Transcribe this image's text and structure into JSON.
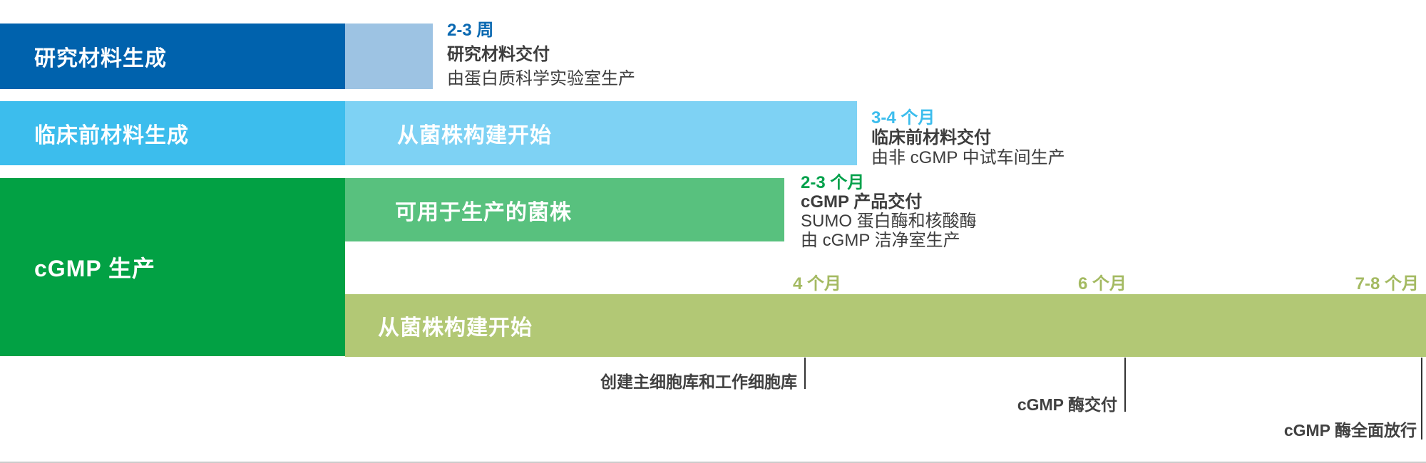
{
  "colors": {
    "research_bar": "#0062AD",
    "research_bar_light": "#9DC3E3",
    "preclinical_bar": "#3CBDED",
    "preclinical_bar_light": "#7ED2F4",
    "cgmp_block_green": "#02A144",
    "strain_bar_green": "#58C17E",
    "build_bar_olive": "#B2C875",
    "timeline_marker_text": "#A4BA62",
    "research_duration_text": "#0968B1",
    "preclinical_duration_text": "#3CBDED",
    "cgmp_duration_text": "#02A14B",
    "body_text": "#3D3D3D",
    "milestone_line": "#333333"
  },
  "rows": {
    "research": {
      "bar_label": "研究材料生成",
      "duration": "2-3 周",
      "deliverable": "研究材料交付",
      "detail": "由蛋白质科学实验室生产"
    },
    "preclinical": {
      "bar_label": "临床前材料生成",
      "sub_bar_label": "从菌株构建开始",
      "duration": "3-4 个月",
      "deliverable": "临床前材料交付",
      "detail": "由非 cGMP 中试车间生产"
    },
    "cgmp": {
      "bar_label": "cGMP 生产",
      "strain_bar_label": "可用于生产的菌株",
      "duration": "2-3 个月",
      "deliverable": "cGMP 产品交付",
      "detail_1": "SUMO 蛋白酶和核酸酶",
      "detail_2": "由 cGMP 洁净室生产",
      "build_bar_label": "从菌株构建开始",
      "timeline_markers": [
        "4 个月",
        "6 个月",
        "7-8 个月"
      ],
      "milestones": [
        "创建主细胞库和工作细胞库",
        "cGMP 酶交付",
        "cGMP 酶全面放行"
      ]
    }
  }
}
